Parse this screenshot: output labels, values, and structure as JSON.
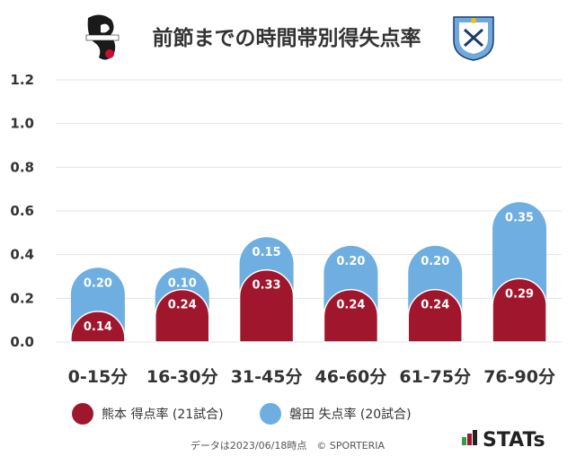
{
  "header": {
    "title": "前節までの時間帯別得失点率",
    "left_logo": "kumamoto-crest-icon",
    "right_logo": "iwata-crest-icon"
  },
  "chart_data": {
    "type": "bar",
    "stacked": true,
    "categories": [
      "0-15分",
      "16-30分",
      "31-45分",
      "46-60分",
      "61-75分",
      "76-90分"
    ],
    "series": [
      {
        "name": "熊本 得点率 (21試合)",
        "color": "#a0172d",
        "values": [
          0.14,
          0.24,
          0.33,
          0.24,
          0.24,
          0.29
        ],
        "labels": [
          "0.14",
          "0.24",
          "0.33",
          "0.24",
          "0.24",
          "0.29"
        ]
      },
      {
        "name": "磐田 失点率 (20試合)",
        "color": "#6eaee0",
        "values": [
          0.2,
          0.1,
          0.15,
          0.2,
          0.2,
          0.35
        ],
        "labels": [
          "0.20",
          "0.10",
          "0.15",
          "0.20",
          "0.20",
          "0.35"
        ]
      }
    ],
    "ylim": [
      0,
      1.2
    ],
    "yticks": [
      "0.0",
      "0.2",
      "0.4",
      "0.6",
      "0.8",
      "1.0",
      "1.2"
    ],
    "grid": true,
    "legend_position": "bottom-left"
  },
  "footer": {
    "credit": "データは2023/06/18時点　© SPORTERIA",
    "brand": "STATs"
  }
}
